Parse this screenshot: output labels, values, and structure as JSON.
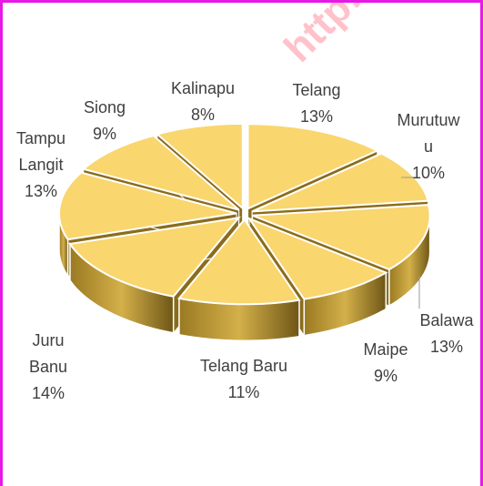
{
  "chart_data": {
    "type": "pie3d",
    "categories": [
      "Telang",
      "Murutuwu",
      "Balawa",
      "Maipe",
      "Telang Baru",
      "Juru Banu",
      "Tampu Langit",
      "Siong",
      "Kalinapu"
    ],
    "values": [
      13,
      10,
      13,
      9,
      11,
      14,
      13,
      9,
      8
    ],
    "value_labels": [
      "13%",
      "10%",
      "13%",
      "9%",
      "11%",
      "14%",
      "13%",
      "9%",
      "8%"
    ],
    "color": "#f9d66e",
    "watermark": "http://bo"
  }
}
